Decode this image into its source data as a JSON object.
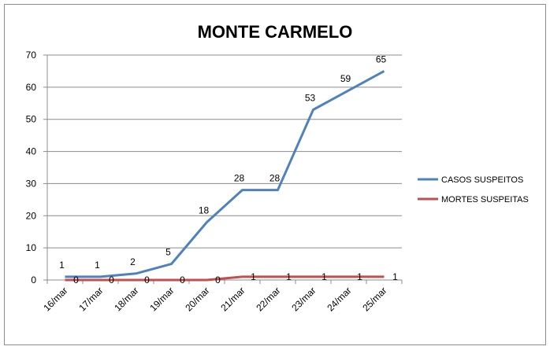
{
  "chart_data": {
    "type": "line",
    "title": "MONTE CARMELO",
    "xlabel": "",
    "ylabel": "",
    "ylim": [
      0,
      70
    ],
    "yticks": [
      0,
      10,
      20,
      30,
      40,
      50,
      60,
      70
    ],
    "grid": true,
    "legend_position": "right",
    "categories": [
      "16/mar",
      "17/mar",
      "18/mar",
      "19/mar",
      "20/mar",
      "21/mar",
      "22/mar",
      "23/mar",
      "24/mar",
      "25/mar"
    ],
    "series": [
      {
        "name": "CASOS SUSPEITOS",
        "color": "#4f81bd",
        "values": [
          1,
          1,
          2,
          5,
          18,
          28,
          28,
          53,
          59,
          65
        ]
      },
      {
        "name": "MORTES SUSPEITAS",
        "color": "#c0504d",
        "values": [
          0,
          0,
          0,
          0,
          0,
          1,
          1,
          1,
          1,
          1
        ]
      }
    ]
  }
}
